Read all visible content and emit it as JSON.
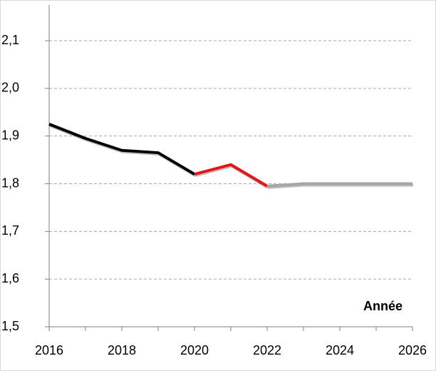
{
  "chart_data": {
    "type": "line",
    "annotation": "Année",
    "xlim": [
      2016,
      2026
    ],
    "xticks": [
      2016,
      2018,
      2020,
      2022,
      2024,
      2026
    ],
    "ylim": [
      1.5,
      2.1
    ],
    "yticks": [
      {
        "value": 1.5,
        "label": "1,5"
      },
      {
        "value": 1.6,
        "label": "1,6"
      },
      {
        "value": 1.7,
        "label": "1,7"
      },
      {
        "value": 1.8,
        "label": "1,8"
      },
      {
        "value": 1.9,
        "label": "1,9"
      },
      {
        "value": 2.0,
        "label": "2,0"
      },
      {
        "value": 2.1,
        "label": "2,1"
      }
    ],
    "grid": true,
    "series": [
      {
        "color": "#000000",
        "x": [
          2016,
          2017,
          2018,
          2019,
          2020
        ],
        "values": [
          1.925,
          1.895,
          1.87,
          1.865,
          1.82
        ]
      },
      {
        "color": "#e8141b",
        "x": [
          2020,
          2021,
          2022
        ],
        "values": [
          1.82,
          1.84,
          1.795
        ]
      },
      {
        "color": "#a6a6a6",
        "x": [
          2022,
          2023,
          2024,
          2025,
          2026
        ],
        "values": [
          1.795,
          1.8,
          1.8,
          1.8,
          1.8
        ]
      }
    ]
  }
}
